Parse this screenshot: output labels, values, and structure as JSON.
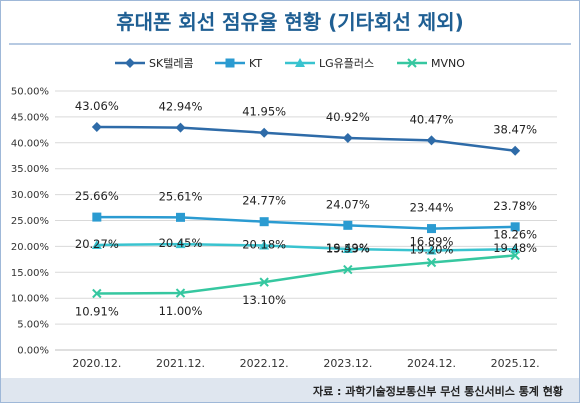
{
  "chart_data": {
    "type": "line",
    "title": "휴대폰 회선 점유율 현황 (기타회선 제외)",
    "categories": [
      "2020.12.",
      "2021.12.",
      "2022.12.",
      "2023.12.",
      "2024.12.",
      "2025.12."
    ],
    "ylim": [
      0,
      50
    ],
    "yticks": [
      "0.00%",
      "5.00%",
      "10.00%",
      "15.00%",
      "20.00%",
      "25.00%",
      "30.00%",
      "35.00%",
      "40.00%",
      "45.00%",
      "50.00%"
    ],
    "grid": true,
    "legend_position": "top",
    "series": [
      {
        "name": "SK텔레콤",
        "marker": "diamond",
        "color": "#2e6ba8",
        "values": [
          43.06,
          42.94,
          41.95,
          40.92,
          40.47,
          38.47
        ],
        "labels": [
          "43.06%",
          "42.94%",
          "41.95%",
          "40.92%",
          "40.47%",
          "38.47%"
        ]
      },
      {
        "name": "KT",
        "marker": "square",
        "color": "#2b9bd1",
        "values": [
          25.66,
          25.61,
          24.77,
          24.07,
          23.44,
          23.78
        ],
        "labels": [
          "25.66%",
          "25.61%",
          "24.77%",
          "24.07%",
          "23.44%",
          "23.78%"
        ]
      },
      {
        "name": "LG유플러스",
        "marker": "triangle",
        "color": "#39c3cf",
        "values": [
          20.27,
          20.45,
          20.18,
          19.49,
          19.2,
          19.48
        ],
        "labels": [
          "20.27%",
          "20.45%",
          "20.18%",
          "19.49%",
          "19.20%",
          "19.48%"
        ]
      },
      {
        "name": "MVNO",
        "marker": "x",
        "color": "#36c7a0",
        "values": [
          10.91,
          11.0,
          13.1,
          15.53,
          16.89,
          18.26
        ],
        "labels": [
          "10.91%",
          "11.00%",
          "13.10%",
          "15.53%",
          "16.89%",
          "18.26%"
        ]
      }
    ],
    "source": "자료 : 과학기술정보통신부 무선 통신서비스 통계 현황"
  }
}
